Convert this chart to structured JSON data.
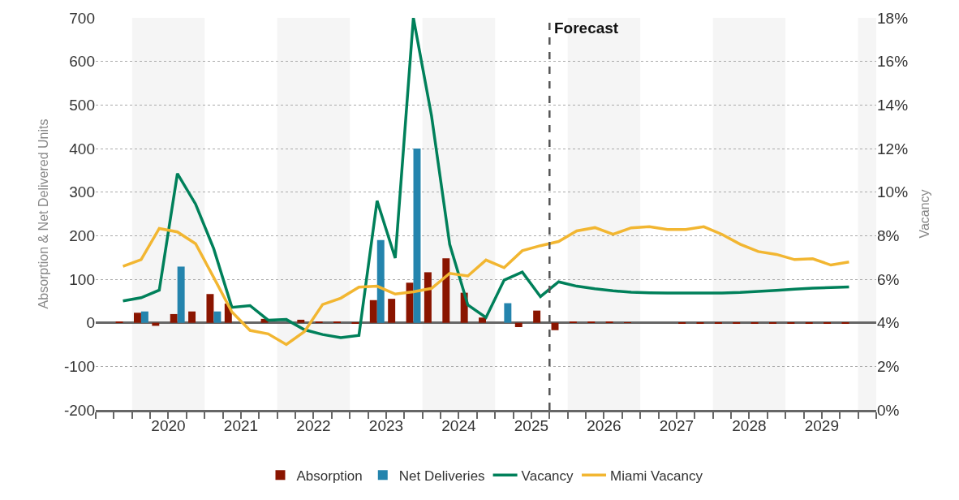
{
  "chart_data": {
    "type": "bar",
    "ylabel": "Absorption & Net Delivered Units",
    "y2label": "Vacancy",
    "x": [
      2019.875,
      2020.125,
      2020.375,
      2020.625,
      2020.875,
      2021.125,
      2021.375,
      2021.625,
      2021.875,
      2022.125,
      2022.375,
      2022.625,
      2022.875,
      2023.125,
      2023.375,
      2023.625,
      2023.875,
      2024.125,
      2024.375,
      2024.625,
      2024.875,
      2025.125,
      2025.375,
      2025.625,
      2025.875,
      2026.125,
      2026.375,
      2026.625,
      2026.875,
      2027.125,
      2027.375,
      2027.625,
      2027.875,
      2028.125,
      2028.375,
      2028.625,
      2028.875,
      2029.125,
      2029.375,
      2029.625,
      2029.875
    ],
    "xlim": [
      2019.5,
      2030.25
    ],
    "xticks": [
      {
        "value": 2020.5,
        "label": "2020"
      },
      {
        "value": 2021.5,
        "label": "2021"
      },
      {
        "value": 2022.5,
        "label": "2022"
      },
      {
        "value": 2023.5,
        "label": "2023"
      },
      {
        "value": 2024.5,
        "label": "2024"
      },
      {
        "value": 2025.5,
        "label": "2025"
      },
      {
        "value": 2026.5,
        "label": "2026"
      },
      {
        "value": 2027.5,
        "label": "2027"
      },
      {
        "value": 2028.5,
        "label": "2028"
      },
      {
        "value": 2029.5,
        "label": "2029"
      }
    ],
    "ylim": [
      -200,
      700
    ],
    "yticks": [
      -200,
      -100,
      0,
      100,
      200,
      300,
      400,
      500,
      600,
      700
    ],
    "y2lim": [
      0,
      18
    ],
    "y2ticks": [
      {
        "value": 0,
        "label": "0%"
      },
      {
        "value": 2,
        "label": "2%"
      },
      {
        "value": 4,
        "label": "4%"
      },
      {
        "value": 6,
        "label": "6%"
      },
      {
        "value": 8,
        "label": "8%"
      },
      {
        "value": 10,
        "label": "10%"
      },
      {
        "value": 12,
        "label": "12%"
      },
      {
        "value": 14,
        "label": "14%"
      },
      {
        "value": 16,
        "label": "16%"
      },
      {
        "value": 18,
        "label": "18%"
      }
    ],
    "series": [
      {
        "name": "Absorption",
        "color": "#8a1500",
        "values": [
          2,
          23,
          -7,
          20,
          26,
          66,
          44,
          null,
          9,
          null,
          7,
          3,
          2,
          -2,
          52,
          55,
          92,
          116,
          148,
          69,
          12,
          null,
          -10,
          28,
          -17,
          3,
          2,
          2,
          1,
          0,
          0,
          -1,
          -1,
          -1,
          -1,
          -1,
          -1,
          -1,
          -1,
          -1,
          -1
        ]
      },
      {
        "name": "Net Deliveries",
        "color": "#2484ad",
        "values": [
          null,
          26,
          null,
          129,
          null,
          26,
          null,
          null,
          null,
          null,
          null,
          null,
          null,
          null,
          190,
          null,
          400,
          null,
          null,
          null,
          null,
          45,
          null,
          null,
          null,
          null,
          null,
          null,
          null,
          null,
          null,
          null,
          null,
          null,
          null,
          null,
          null,
          null,
          null,
          null,
          null
        ]
      },
      {
        "name": "Vacancy",
        "type": "line",
        "axis": "y2",
        "color": "#00805a",
        "values": [
          5.0,
          5.15,
          5.5,
          10.85,
          9.45,
          7.4,
          4.71,
          4.79,
          4.12,
          4.15,
          3.68,
          3.46,
          3.32,
          3.42,
          9.6,
          6.97,
          18.0,
          13.5,
          7.6,
          4.82,
          4.24,
          5.96,
          6.33,
          5.2,
          5.88,
          5.68,
          5.56,
          5.47,
          5.4,
          5.38,
          5.37,
          5.37,
          5.37,
          5.37,
          5.39,
          5.44,
          5.49,
          5.54,
          5.59,
          5.62,
          5.65
        ]
      },
      {
        "name": "Miami Vacancy",
        "type": "line",
        "axis": "y2",
        "color": "#f2b631",
        "values": [
          6.59,
          6.9,
          8.33,
          8.17,
          7.63,
          6.08,
          4.5,
          3.65,
          3.49,
          3.0,
          3.6,
          4.84,
          5.13,
          5.64,
          5.68,
          5.32,
          5.42,
          5.58,
          6.27,
          6.15,
          6.88,
          6.53,
          7.31,
          7.54,
          7.73,
          8.22,
          8.37,
          8.06,
          8.36,
          8.41,
          8.28,
          8.28,
          8.41,
          8.06,
          7.61,
          7.27,
          7.14,
          6.9,
          6.94,
          6.65,
          6.79
        ]
      }
    ],
    "ref_lines": [
      {
        "axis": "x",
        "value": 2025.75,
        "label": "Forecast",
        "color": "#555555",
        "line_style": "dashed"
      }
    ],
    "bands": [
      {
        "axis": "x",
        "from": 2020,
        "to": 2021,
        "color": "#f5f5f5"
      },
      {
        "axis": "x",
        "from": 2022,
        "to": 2023,
        "color": "#f5f5f5"
      },
      {
        "axis": "x",
        "from": 2024,
        "to": 2025,
        "color": "#f5f5f5"
      },
      {
        "axis": "x",
        "from": 2026,
        "to": 2027,
        "color": "#f5f5f5"
      },
      {
        "axis": "x",
        "from": 2028,
        "to": 2029,
        "color": "#f5f5f5"
      },
      {
        "axis": "x",
        "from": 2030,
        "to": 2030.25,
        "color": "#f5f5f5"
      }
    ],
    "grid": "y",
    "legend": "bottom",
    "marker": "none",
    "line_style": "solid"
  }
}
